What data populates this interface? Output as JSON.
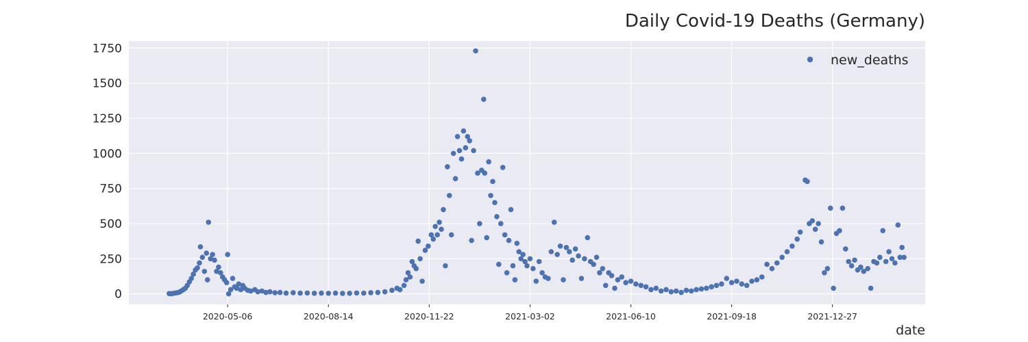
{
  "chart_data": {
    "type": "scatter",
    "title": "Daily Covid-19 Deaths (Germany)",
    "xlabel": "date",
    "ylabel": "",
    "x_axis_type": "date",
    "xlim": [
      "2020-01-29",
      "2022-03-29"
    ],
    "ylim": [
      -75,
      1800
    ],
    "x_ticks": [
      "2020-05-06",
      "2020-08-14",
      "2020-11-22",
      "2021-03-02",
      "2021-06-10",
      "2021-09-18",
      "2021-12-27"
    ],
    "y_ticks": [
      0,
      250,
      500,
      750,
      1000,
      1250,
      1500,
      1750
    ],
    "grid": true,
    "legend": {
      "position": "top-right",
      "entries": [
        "new_deaths"
      ]
    },
    "colors": {
      "series": "#4c72b0",
      "plot_bg": "#eaeaf2",
      "grid": "#ffffff",
      "text": "#262626"
    },
    "series": [
      {
        "name": "new_deaths",
        "points": [
          [
            "2020-03-09",
            2
          ],
          [
            "2020-03-11",
            1
          ],
          [
            "2020-03-13",
            3
          ],
          [
            "2020-03-15",
            6
          ],
          [
            "2020-03-17",
            8
          ],
          [
            "2020-03-19",
            12
          ],
          [
            "2020-03-21",
            20
          ],
          [
            "2020-03-23",
            30
          ],
          [
            "2020-03-25",
            40
          ],
          [
            "2020-03-27",
            60
          ],
          [
            "2020-03-29",
            85
          ],
          [
            "2020-03-31",
            110
          ],
          [
            "2020-04-02",
            140
          ],
          [
            "2020-04-04",
            170
          ],
          [
            "2020-04-06",
            185
          ],
          [
            "2020-04-08",
            220
          ],
          [
            "2020-04-09",
            335
          ],
          [
            "2020-04-11",
            260
          ],
          [
            "2020-04-13",
            160
          ],
          [
            "2020-04-15",
            290
          ],
          [
            "2020-04-16",
            100
          ],
          [
            "2020-04-17",
            510
          ],
          [
            "2020-04-19",
            250
          ],
          [
            "2020-04-21",
            280
          ],
          [
            "2020-04-23",
            240
          ],
          [
            "2020-04-25",
            160
          ],
          [
            "2020-04-27",
            190
          ],
          [
            "2020-04-29",
            150
          ],
          [
            "2020-05-01",
            120
          ],
          [
            "2020-05-03",
            100
          ],
          [
            "2020-05-05",
            80
          ],
          [
            "2020-05-06",
            280
          ],
          [
            "2020-05-07",
            0
          ],
          [
            "2020-05-09",
            30
          ],
          [
            "2020-05-11",
            110
          ],
          [
            "2020-05-13",
            50
          ],
          [
            "2020-05-15",
            40
          ],
          [
            "2020-05-17",
            70
          ],
          [
            "2020-05-19",
            30
          ],
          [
            "2020-05-21",
            60
          ],
          [
            "2020-05-23",
            40
          ],
          [
            "2020-05-26",
            25
          ],
          [
            "2020-05-29",
            20
          ],
          [
            "2020-06-02",
            30
          ],
          [
            "2020-06-05",
            15
          ],
          [
            "2020-06-09",
            20
          ],
          [
            "2020-06-13",
            10
          ],
          [
            "2020-06-17",
            15
          ],
          [
            "2020-06-22",
            8
          ],
          [
            "2020-06-27",
            10
          ],
          [
            "2020-07-03",
            5
          ],
          [
            "2020-07-10",
            8
          ],
          [
            "2020-07-17",
            5
          ],
          [
            "2020-07-24",
            6
          ],
          [
            "2020-07-31",
            4
          ],
          [
            "2020-08-07",
            5
          ],
          [
            "2020-08-14",
            4
          ],
          [
            "2020-08-21",
            5
          ],
          [
            "2020-08-28",
            3
          ],
          [
            "2020-09-04",
            4
          ],
          [
            "2020-09-11",
            6
          ],
          [
            "2020-09-18",
            5
          ],
          [
            "2020-09-25",
            8
          ],
          [
            "2020-10-02",
            10
          ],
          [
            "2020-10-09",
            15
          ],
          [
            "2020-10-16",
            25
          ],
          [
            "2020-10-21",
            40
          ],
          [
            "2020-10-24",
            30
          ],
          [
            "2020-10-28",
            60
          ],
          [
            "2020-10-30",
            100
          ],
          [
            "2020-11-01",
            150
          ],
          [
            "2020-11-03",
            120
          ],
          [
            "2020-11-05",
            230
          ],
          [
            "2020-11-07",
            200
          ],
          [
            "2020-11-09",
            180
          ],
          [
            "2020-11-11",
            375
          ],
          [
            "2020-11-13",
            250
          ],
          [
            "2020-11-15",
            90
          ],
          [
            "2020-11-18",
            310
          ],
          [
            "2020-11-21",
            340
          ],
          [
            "2020-11-24",
            420
          ],
          [
            "2020-11-26",
            390
          ],
          [
            "2020-11-28",
            480
          ],
          [
            "2020-11-30",
            420
          ],
          [
            "2020-12-02",
            510
          ],
          [
            "2020-12-04",
            460
          ],
          [
            "2020-12-06",
            600
          ],
          [
            "2020-12-08",
            200
          ],
          [
            "2020-12-10",
            905
          ],
          [
            "2020-12-12",
            700
          ],
          [
            "2020-12-14",
            420
          ],
          [
            "2020-12-16",
            1000
          ],
          [
            "2020-12-18",
            820
          ],
          [
            "2020-12-20",
            1120
          ],
          [
            "2020-12-22",
            1020
          ],
          [
            "2020-12-24",
            960
          ],
          [
            "2020-12-26",
            1160
          ],
          [
            "2020-12-28",
            1040
          ],
          [
            "2020-12-30",
            1120
          ],
          [
            "2021-01-01",
            1090
          ],
          [
            "2021-01-03",
            380
          ],
          [
            "2021-01-05",
            1020
          ],
          [
            "2021-01-07",
            1730
          ],
          [
            "2021-01-09",
            860
          ],
          [
            "2021-01-11",
            500
          ],
          [
            "2021-01-13",
            880
          ],
          [
            "2021-01-15",
            1385
          ],
          [
            "2021-01-16",
            860
          ],
          [
            "2021-01-18",
            400
          ],
          [
            "2021-01-20",
            940
          ],
          [
            "2021-01-22",
            700
          ],
          [
            "2021-01-24",
            800
          ],
          [
            "2021-01-26",
            650
          ],
          [
            "2021-01-28",
            550
          ],
          [
            "2021-01-30",
            210
          ],
          [
            "2021-02-01",
            500
          ],
          [
            "2021-02-03",
            900
          ],
          [
            "2021-02-05",
            420
          ],
          [
            "2021-02-07",
            150
          ],
          [
            "2021-02-09",
            380
          ],
          [
            "2021-02-11",
            600
          ],
          [
            "2021-02-13",
            200
          ],
          [
            "2021-02-15",
            100
          ],
          [
            "2021-02-17",
            360
          ],
          [
            "2021-02-19",
            300
          ],
          [
            "2021-02-21",
            250
          ],
          [
            "2021-02-23",
            280
          ],
          [
            "2021-02-25",
            230
          ],
          [
            "2021-02-27",
            200
          ],
          [
            "2021-03-02",
            250
          ],
          [
            "2021-03-05",
            180
          ],
          [
            "2021-03-08",
            90
          ],
          [
            "2021-03-11",
            230
          ],
          [
            "2021-03-14",
            150
          ],
          [
            "2021-03-17",
            120
          ],
          [
            "2021-03-20",
            110
          ],
          [
            "2021-03-23",
            300
          ],
          [
            "2021-03-26",
            510
          ],
          [
            "2021-03-29",
            280
          ],
          [
            "2021-04-01",
            340
          ],
          [
            "2021-04-04",
            100
          ],
          [
            "2021-04-07",
            330
          ],
          [
            "2021-04-10",
            300
          ],
          [
            "2021-04-13",
            240
          ],
          [
            "2021-04-16",
            320
          ],
          [
            "2021-04-19",
            270
          ],
          [
            "2021-04-22",
            110
          ],
          [
            "2021-04-25",
            250
          ],
          [
            "2021-04-28",
            400
          ],
          [
            "2021-05-01",
            230
          ],
          [
            "2021-05-04",
            210
          ],
          [
            "2021-05-07",
            260
          ],
          [
            "2021-05-10",
            150
          ],
          [
            "2021-05-13",
            180
          ],
          [
            "2021-05-16",
            60
          ],
          [
            "2021-05-19",
            150
          ],
          [
            "2021-05-22",
            130
          ],
          [
            "2021-05-25",
            40
          ],
          [
            "2021-05-28",
            100
          ],
          [
            "2021-06-01",
            120
          ],
          [
            "2021-06-05",
            80
          ],
          [
            "2021-06-10",
            90
          ],
          [
            "2021-06-15",
            70
          ],
          [
            "2021-06-20",
            60
          ],
          [
            "2021-06-25",
            50
          ],
          [
            "2021-06-30",
            30
          ],
          [
            "2021-07-05",
            40
          ],
          [
            "2021-07-10",
            20
          ],
          [
            "2021-07-15",
            30
          ],
          [
            "2021-07-20",
            15
          ],
          [
            "2021-07-25",
            20
          ],
          [
            "2021-07-30",
            10
          ],
          [
            "2021-08-04",
            25
          ],
          [
            "2021-08-09",
            20
          ],
          [
            "2021-08-14",
            30
          ],
          [
            "2021-08-19",
            35
          ],
          [
            "2021-08-24",
            40
          ],
          [
            "2021-08-29",
            50
          ],
          [
            "2021-09-03",
            60
          ],
          [
            "2021-09-08",
            70
          ],
          [
            "2021-09-13",
            110
          ],
          [
            "2021-09-18",
            80
          ],
          [
            "2021-09-23",
            90
          ],
          [
            "2021-09-28",
            70
          ],
          [
            "2021-10-03",
            60
          ],
          [
            "2021-10-08",
            90
          ],
          [
            "2021-10-13",
            100
          ],
          [
            "2021-10-18",
            120
          ],
          [
            "2021-10-23",
            210
          ],
          [
            "2021-10-28",
            180
          ],
          [
            "2021-11-02",
            220
          ],
          [
            "2021-11-07",
            260
          ],
          [
            "2021-11-12",
            300
          ],
          [
            "2021-11-17",
            340
          ],
          [
            "2021-11-22",
            390
          ],
          [
            "2021-11-25",
            440
          ],
          [
            "2021-11-30",
            810
          ],
          [
            "2021-12-02",
            800
          ],
          [
            "2021-12-04",
            500
          ],
          [
            "2021-12-07",
            520
          ],
          [
            "2021-12-10",
            460
          ],
          [
            "2021-12-13",
            500
          ],
          [
            "2021-12-16",
            370
          ],
          [
            "2021-12-19",
            150
          ],
          [
            "2021-12-22",
            180
          ],
          [
            "2021-12-25",
            610
          ],
          [
            "2021-12-28",
            40
          ],
          [
            "2021-12-31",
            430
          ],
          [
            "2022-01-03",
            450
          ],
          [
            "2022-01-06",
            610
          ],
          [
            "2022-01-09",
            320
          ],
          [
            "2022-01-12",
            230
          ],
          [
            "2022-01-15",
            200
          ],
          [
            "2022-01-18",
            240
          ],
          [
            "2022-01-21",
            170
          ],
          [
            "2022-01-24",
            190
          ],
          [
            "2022-01-27",
            160
          ],
          [
            "2022-01-31",
            180
          ],
          [
            "2022-02-03",
            40
          ],
          [
            "2022-02-06",
            230
          ],
          [
            "2022-02-09",
            220
          ],
          [
            "2022-02-12",
            260
          ],
          [
            "2022-02-15",
            450
          ],
          [
            "2022-02-18",
            230
          ],
          [
            "2022-02-21",
            300
          ],
          [
            "2022-02-24",
            250
          ],
          [
            "2022-02-27",
            220
          ],
          [
            "2022-03-02",
            490
          ],
          [
            "2022-03-04",
            260
          ],
          [
            "2022-03-06",
            330
          ],
          [
            "2022-03-08",
            260
          ]
        ]
      }
    ]
  }
}
